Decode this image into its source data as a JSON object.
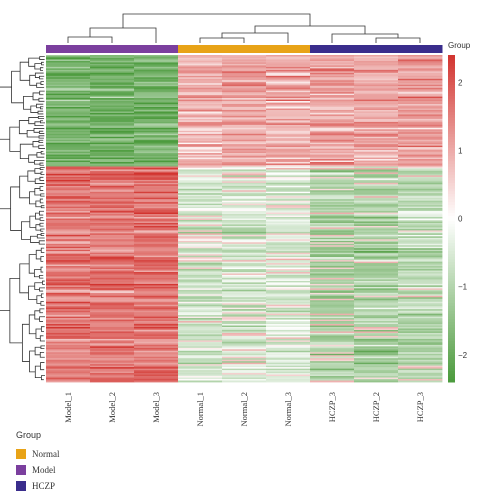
{
  "chart_data": {
    "type": "heatmap",
    "title": "",
    "samples": [
      "Model_1",
      "Model_2",
      "Model_3",
      "Normal_1",
      "Normal_2",
      "Normal_3",
      "HCZP_3",
      "HCZP_2",
      "HCZP_3"
    ],
    "sample_groups": [
      "Model",
      "Model",
      "Model",
      "Normal",
      "Normal",
      "Normal",
      "HCZP",
      "HCZP",
      "HCZP"
    ],
    "group_colors": {
      "Normal": "#e8a317",
      "Model": "#7b3f9e",
      "HCZP": "#3a2d8c"
    },
    "color_scale": {
      "ticks": [
        "2",
        "1",
        "0",
        "−1",
        "−2"
      ],
      "tick_values": [
        2,
        1,
        0,
        -1,
        -2
      ],
      "range": [
        -2.4,
        2.4
      ],
      "low_color": "#4b9a3c",
      "mid_color": "#ffffff",
      "high_color": "#d2342f"
    },
    "colorbar_title": "Group",
    "cluster_blocks": [
      {
        "name": "upper",
        "row_fraction": 0.34,
        "mean_values": [
          -1.8,
          -1.9,
          -1.8,
          0.9,
          1.0,
          0.9,
          1.1,
          1.0,
          1.1
        ]
      },
      {
        "name": "lower",
        "row_fraction": 0.66,
        "mean_values": [
          1.6,
          1.6,
          1.7,
          -0.6,
          -0.6,
          -0.5,
          -1.1,
          -1.1,
          -0.9
        ]
      }
    ],
    "legend": {
      "title": "Group",
      "items": [
        {
          "label": "Normal",
          "color": "#e8a317"
        },
        {
          "label": "Model",
          "color": "#7b3f9e"
        },
        {
          "label": "HCZP",
          "color": "#3a2d8c"
        }
      ]
    }
  }
}
